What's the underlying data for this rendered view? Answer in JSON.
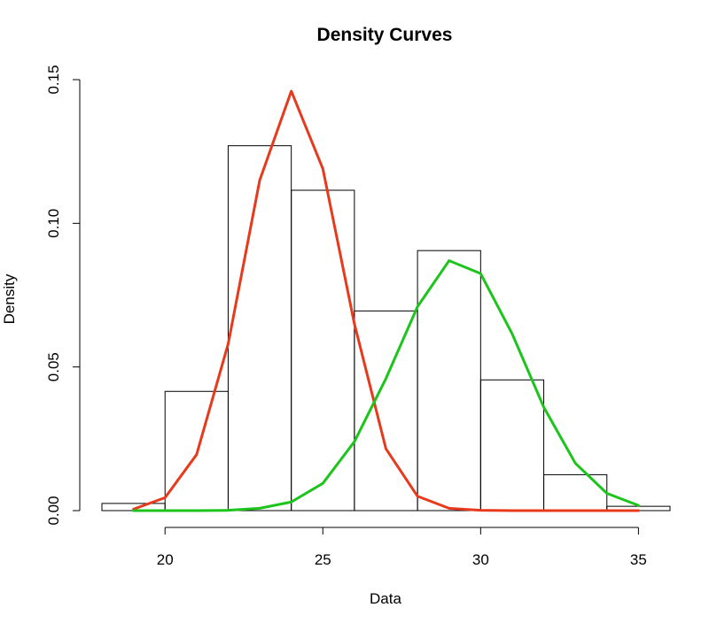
{
  "chart_data": {
    "type": "histogram",
    "title": "Density Curves",
    "xlabel": "Data",
    "ylabel": "Density",
    "xlim": [
      18,
      36
    ],
    "ylim": [
      0,
      0.15
    ],
    "x_ticks": [
      20,
      25,
      30,
      35
    ],
    "x_tick_labels": [
      "20",
      "25",
      "30",
      "35"
    ],
    "y_ticks": [
      0,
      0.05,
      0.1,
      0.15
    ],
    "y_tick_labels": [
      "0.00",
      "0.05",
      "0.10",
      "0.15"
    ],
    "bins": [
      {
        "x0": 18,
        "x1": 20,
        "density": 0.0025
      },
      {
        "x0": 20,
        "x1": 22,
        "density": 0.0415
      },
      {
        "x0": 22,
        "x1": 24,
        "density": 0.127
      },
      {
        "x0": 24,
        "x1": 26,
        "density": 0.1115
      },
      {
        "x0": 26,
        "x1": 28,
        "density": 0.0695
      },
      {
        "x0": 28,
        "x1": 30,
        "density": 0.0905
      },
      {
        "x0": 30,
        "x1": 32,
        "density": 0.0455
      },
      {
        "x0": 32,
        "x1": 34,
        "density": 0.0125
      },
      {
        "x0": 34,
        "x1": 36,
        "density": 0.0015
      }
    ],
    "series": [
      {
        "color": "#e8391c",
        "x": [
          19,
          20,
          21,
          22,
          23,
          24,
          25,
          26,
          27,
          28,
          29,
          30,
          31,
          32,
          33,
          34,
          35
        ],
        "y": [
          0.0005,
          0.0045,
          0.0195,
          0.058,
          0.115,
          0.146,
          0.119,
          0.065,
          0.0215,
          0.005,
          0.0008,
          0.0001,
          0,
          0,
          0,
          0,
          0
        ]
      },
      {
        "color": "#1cc41c",
        "x": [
          19,
          20,
          21,
          22,
          23,
          24,
          25,
          26,
          27,
          28,
          29,
          30,
          31,
          32,
          33,
          34,
          35
        ],
        "y": [
          0,
          0,
          0,
          0.0001,
          0.0008,
          0.003,
          0.0095,
          0.024,
          0.046,
          0.071,
          0.087,
          0.0825,
          0.0615,
          0.036,
          0.0165,
          0.006,
          0.0018
        ]
      }
    ]
  }
}
